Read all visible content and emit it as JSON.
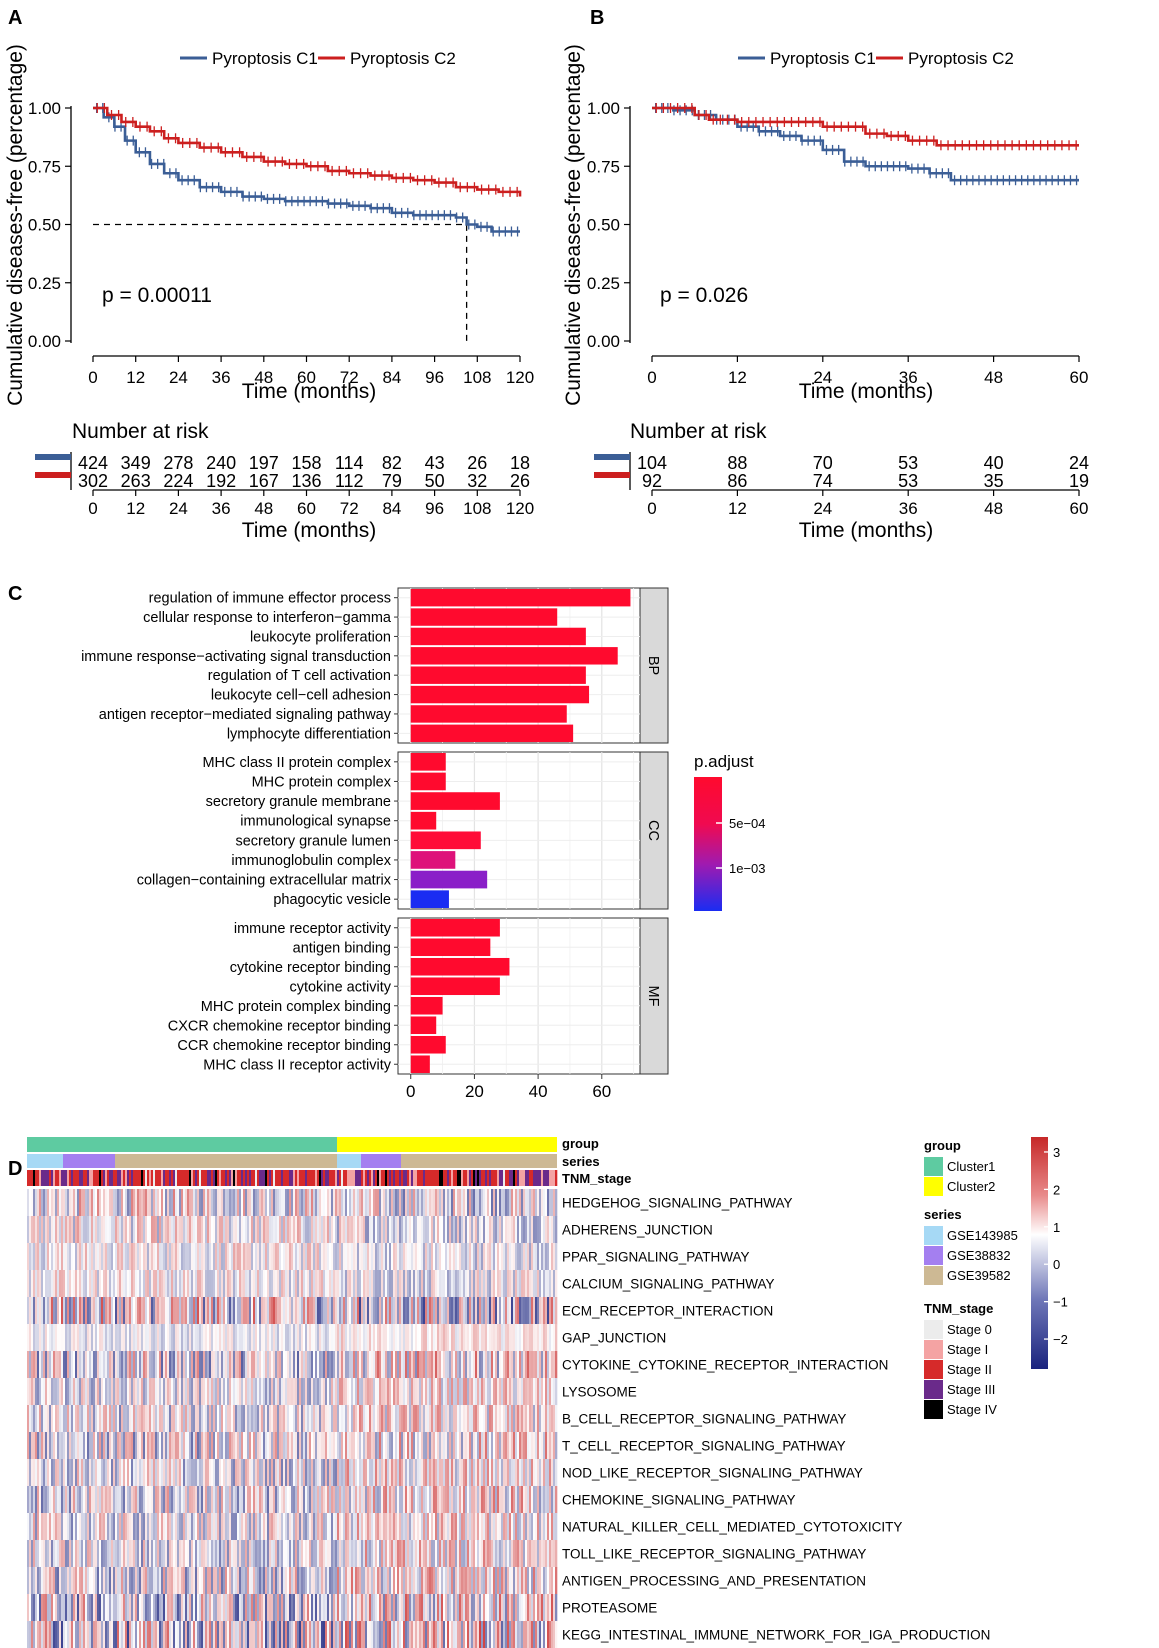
{
  "colors": {
    "c1": "#3b5e96",
    "c2": "#cc1f1f"
  },
  "chart_data": [
    {
      "panel": "A",
      "type": "line",
      "subtype": "kaplan-meier",
      "xlabel": "Time (months)",
      "ylabel": "Cumulative diseases-free (percentage)",
      "xlim": [
        0,
        120
      ],
      "ylim": [
        0,
        1
      ],
      "x_ticks": [
        0,
        12,
        24,
        36,
        48,
        60,
        72,
        84,
        96,
        108,
        120
      ],
      "y_ticks": [
        "0.00",
        "0.25",
        "0.50",
        "0.75",
        "1.00"
      ],
      "legend": [
        "Pyroptosis C1",
        "Pyroptosis C2"
      ],
      "pvalue": "p = 0.00011",
      "median_line": {
        "x": 105,
        "y": 0.5
      },
      "series": [
        {
          "name": "Pyroptosis C1",
          "color": "#3b5e96",
          "x": [
            0,
            3,
            6,
            9,
            12,
            16,
            20,
            24,
            30,
            36,
            42,
            48,
            54,
            60,
            66,
            72,
            78,
            84,
            90,
            96,
            102,
            105,
            108,
            112,
            120
          ],
          "y": [
            1.0,
            0.96,
            0.92,
            0.86,
            0.81,
            0.76,
            0.72,
            0.69,
            0.66,
            0.64,
            0.62,
            0.61,
            0.6,
            0.6,
            0.59,
            0.58,
            0.57,
            0.55,
            0.54,
            0.54,
            0.53,
            0.5,
            0.49,
            0.47,
            0.47
          ]
        },
        {
          "name": "Pyroptosis C2",
          "color": "#cc1f1f",
          "x": [
            0,
            4,
            8,
            12,
            16,
            20,
            24,
            30,
            36,
            42,
            48,
            54,
            60,
            66,
            72,
            78,
            84,
            90,
            96,
            102,
            108,
            114,
            118,
            120
          ],
          "y": [
            1.0,
            0.97,
            0.94,
            0.92,
            0.9,
            0.87,
            0.85,
            0.83,
            0.81,
            0.79,
            0.77,
            0.76,
            0.75,
            0.73,
            0.72,
            0.71,
            0.7,
            0.69,
            0.68,
            0.66,
            0.65,
            0.64,
            0.64,
            0.62
          ]
        }
      ],
      "risk_table": {
        "title": "Number at risk",
        "times": [
          0,
          12,
          24,
          36,
          48,
          60,
          72,
          84,
          96,
          108,
          120
        ],
        "rows": [
          [
            "424",
            "349",
            "278",
            "240",
            "197",
            "158",
            "114",
            "82",
            "43",
            "26",
            "18"
          ],
          [
            "302",
            "263",
            "224",
            "192",
            "167",
            "136",
            "112",
            "79",
            "50",
            "32",
            "26"
          ]
        ]
      }
    },
    {
      "panel": "B",
      "type": "line",
      "subtype": "kaplan-meier",
      "xlabel": "Time (months)",
      "ylabel": "Cumulative diseases-free (percentage)",
      "xlim": [
        0,
        60
      ],
      "ylim": [
        0,
        1
      ],
      "x_ticks": [
        0,
        12,
        24,
        36,
        48,
        60
      ],
      "y_ticks": [
        "0.00",
        "0.25",
        "0.50",
        "0.75",
        "1.00"
      ],
      "legend": [
        "Pyroptosis C1",
        "Pyroptosis C2"
      ],
      "pvalue": "p = 0.026",
      "series": [
        {
          "name": "Pyroptosis C1",
          "color": "#3b5e96",
          "x": [
            0,
            3,
            6,
            9,
            12,
            15,
            18,
            21,
            24,
            27,
            30,
            33,
            36,
            39,
            42,
            45,
            48,
            54,
            60
          ],
          "y": [
            1.0,
            0.99,
            0.97,
            0.95,
            0.92,
            0.9,
            0.88,
            0.86,
            0.82,
            0.77,
            0.75,
            0.75,
            0.74,
            0.72,
            0.69,
            0.69,
            0.69,
            0.69,
            0.69
          ]
        },
        {
          "name": "Pyroptosis C2",
          "color": "#cc1f1f",
          "x": [
            0,
            4,
            6,
            8,
            12,
            16,
            20,
            24,
            28,
            30,
            33,
            36,
            40,
            44,
            48,
            54,
            60
          ],
          "y": [
            1.0,
            1.0,
            0.97,
            0.95,
            0.94,
            0.94,
            0.94,
            0.92,
            0.92,
            0.89,
            0.88,
            0.86,
            0.84,
            0.84,
            0.84,
            0.84,
            0.84
          ]
        }
      ],
      "risk_table": {
        "title": "Number at risk",
        "times": [
          0,
          12,
          24,
          36,
          48,
          60
        ],
        "rows": [
          [
            "104",
            "88",
            "70",
            "53",
            "40",
            "24"
          ],
          [
            "92",
            "86",
            "74",
            "53",
            "35",
            "19"
          ]
        ]
      }
    },
    {
      "panel": "C",
      "type": "bar",
      "orientation": "horizontal",
      "xlim": [
        0,
        70
      ],
      "x_ticks": [
        "0",
        "20",
        "40",
        "60"
      ],
      "legend_title": "p.adjust",
      "legend_ticks": [
        "5e−04",
        "1e−03"
      ],
      "facets": [
        {
          "name": "BP",
          "terms": [
            {
              "label": "regulation of immune effector process",
              "value": 69,
              "color": "#ff0a2e"
            },
            {
              "label": "cellular response to interferon−gamma",
              "value": 46,
              "color": "#ff0a2e"
            },
            {
              "label": "leukocyte proliferation",
              "value": 55,
              "color": "#ff0a2e"
            },
            {
              "label": "immune response−activating signal transduction",
              "value": 65,
              "color": "#ff0a2e"
            },
            {
              "label": "regulation of T cell activation",
              "value": 55,
              "color": "#ff0a2e"
            },
            {
              "label": "leukocyte cell−cell adhesion",
              "value": 56,
              "color": "#ff0a2e"
            },
            {
              "label": "antigen receptor−mediated signaling pathway",
              "value": 49,
              "color": "#ff0a2e"
            },
            {
              "label": "lymphocyte differentiation",
              "value": 51,
              "color": "#ff0a2e"
            }
          ]
        },
        {
          "name": "CC",
          "terms": [
            {
              "label": "MHC class II protein complex",
              "value": 11,
              "color": "#ff0a2e"
            },
            {
              "label": "MHC protein complex",
              "value": 11,
              "color": "#ff0a2e"
            },
            {
              "label": "secretory granule membrane",
              "value": 28,
              "color": "#ff0a2e"
            },
            {
              "label": "immunological synapse",
              "value": 8,
              "color": "#ff0a2e"
            },
            {
              "label": "secretory granule lumen",
              "value": 22,
              "color": "#ff0c38"
            },
            {
              "label": "immunoglobulin complex",
              "value": 14,
              "color": "#de127a"
            },
            {
              "label": "collagen−containing extracellular matrix",
              "value": 24,
              "color": "#8a1fc8"
            },
            {
              "label": "phagocytic vesicle",
              "value": 12,
              "color": "#1a2cf2"
            }
          ]
        },
        {
          "name": "MF",
          "terms": [
            {
              "label": "immune receptor activity",
              "value": 28,
              "color": "#ff0a2e"
            },
            {
              "label": "antigen binding",
              "value": 25,
              "color": "#ff0a2e"
            },
            {
              "label": "cytokine receptor binding",
              "value": 31,
              "color": "#ff0a2e"
            },
            {
              "label": "cytokine activity",
              "value": 28,
              "color": "#ff0a2e"
            },
            {
              "label": "MHC protein complex binding",
              "value": 10,
              "color": "#ff0a2e"
            },
            {
              "label": "CXCR chemokine receptor binding",
              "value": 8,
              "color": "#ff0a2e"
            },
            {
              "label": "CCR chemokine receptor binding",
              "value": 11,
              "color": "#ff0a2e"
            },
            {
              "label": "MHC class II receptor activity",
              "value": 6,
              "color": "#ff0a2e"
            }
          ]
        }
      ]
    },
    {
      "panel": "D",
      "type": "heatmap",
      "annotation_labels": [
        "group",
        "series",
        "TNM_stage"
      ],
      "rows": [
        "HEDGEHOG_SIGNALING_PATHWAY",
        "ADHERENS_JUNCTION",
        "PPAR_SIGNALING_PATHWAY",
        "CALCIUM_SIGNALING_PATHWAY",
        "ECM_RECEPTOR_INTERACTION",
        "GAP_JUNCTION",
        "CYTOKINE_CYTOKINE_RECEPTOR_INTERACTION",
        "LYSOSOME",
        "B_CELL_RECEPTOR_SIGNALING_PATHWAY",
        "T_CELL_RECEPTOR_SIGNALING_PATHWAY",
        "NOD_LIKE_RECEPTOR_SIGNALING_PATHWAY",
        "CHEMOKINE_SIGNALING_PATHWAY",
        "NATURAL_KILLER_CELL_MEDIATED_CYTOTOXICITY",
        "TOLL_LIKE_RECEPTOR_SIGNALING_PATHWAY",
        "ANTIGEN_PROCESSING_AND_PRESENTATION",
        "PROTEASOME",
        "KEGG_INTESTINAL_IMMUNE_NETWORK_FOR_IGA_PRODUCTION"
      ],
      "group_legend": {
        "title": "group",
        "items": [
          {
            "label": "Cluster1",
            "color": "#5ecba1"
          },
          {
            "label": "Cluster2",
            "color": "#ffff00"
          }
        ]
      },
      "series_legend": {
        "title": "series",
        "items": [
          {
            "label": "GSE143985",
            "color": "#a6d9f5"
          },
          {
            "label": "GSE38832",
            "color": "#a47ff0"
          },
          {
            "label": "GSE39582",
            "color": "#cdb994"
          }
        ]
      },
      "stage_legend": {
        "title": "TNM_stage",
        "items": [
          {
            "label": "Stage 0",
            "color": "#ececec"
          },
          {
            "label": "Stage I",
            "color": "#f4a3a3"
          },
          {
            "label": "Stage II",
            "color": "#d62a2a"
          },
          {
            "label": "Stage III",
            "color": "#6a2a8a"
          },
          {
            "label": "Stage IV",
            "color": "#000000"
          }
        ]
      },
      "colorbar_ticks": [
        "3",
        "2",
        "1",
        "0",
        "−1",
        "−2"
      ]
    }
  ],
  "panels": {
    "a": "A",
    "b": "B",
    "c": "C",
    "d": "D"
  }
}
